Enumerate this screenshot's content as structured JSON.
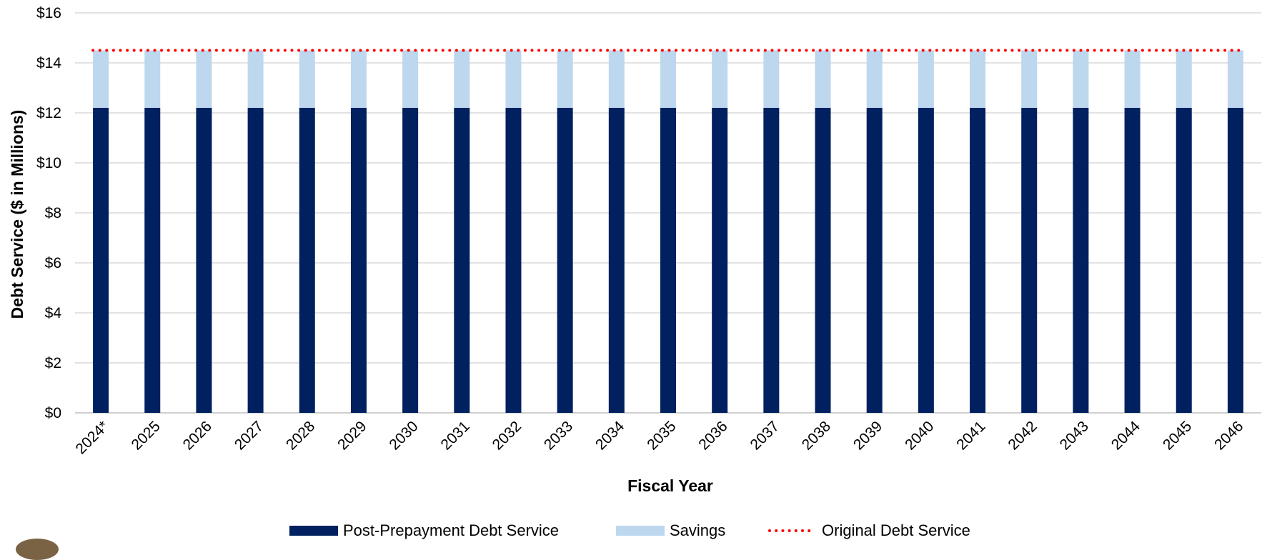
{
  "chart_data": {
    "type": "bar",
    "stacked": true,
    "title": "",
    "xlabel": "Fiscal Year",
    "ylabel": "Debt Service ($ in Millions)",
    "ylim": [
      0,
      16
    ],
    "yticks": [
      0,
      2,
      4,
      6,
      8,
      10,
      12,
      14,
      16
    ],
    "ytick_labels": [
      "$0",
      "$2",
      "$4",
      "$6",
      "$8",
      "$10",
      "$12",
      "$14",
      "$16"
    ],
    "grid": true,
    "legend_position": "bottom",
    "categories": [
      "2024*",
      "2025",
      "2026",
      "2027",
      "2028",
      "2029",
      "2030",
      "2031",
      "2032",
      "2033",
      "2034",
      "2035",
      "2036",
      "2037",
      "2038",
      "2039",
      "2040",
      "2041",
      "2042",
      "2043",
      "2044",
      "2045",
      "2046"
    ],
    "series": [
      {
        "name": "Post-Prepayment Debt Service",
        "kind": "bar",
        "color": "#002060",
        "values": [
          12.2,
          12.2,
          12.2,
          12.2,
          12.2,
          12.2,
          12.2,
          12.2,
          12.2,
          12.2,
          12.2,
          12.2,
          12.2,
          12.2,
          12.2,
          12.2,
          12.2,
          12.2,
          12.2,
          12.2,
          12.2,
          12.2,
          12.2
        ]
      },
      {
        "name": "Savings",
        "kind": "bar",
        "color": "#BDD7EE",
        "values": [
          2.3,
          2.3,
          2.3,
          2.3,
          2.3,
          2.3,
          2.3,
          2.3,
          2.3,
          2.3,
          2.3,
          2.3,
          2.3,
          2.3,
          2.3,
          2.3,
          2.3,
          2.3,
          2.3,
          2.3,
          2.3,
          2.3,
          2.3
        ]
      },
      {
        "name": "Original Debt Service",
        "kind": "line",
        "style": "dotted",
        "color": "#FF0000",
        "values": [
          14.5,
          14.5,
          14.5,
          14.5,
          14.5,
          14.5,
          14.5,
          14.5,
          14.5,
          14.5,
          14.5,
          14.5,
          14.5,
          14.5,
          14.5,
          14.5,
          14.5,
          14.5,
          14.5,
          14.5,
          14.5,
          14.5,
          14.5
        ]
      }
    ]
  }
}
